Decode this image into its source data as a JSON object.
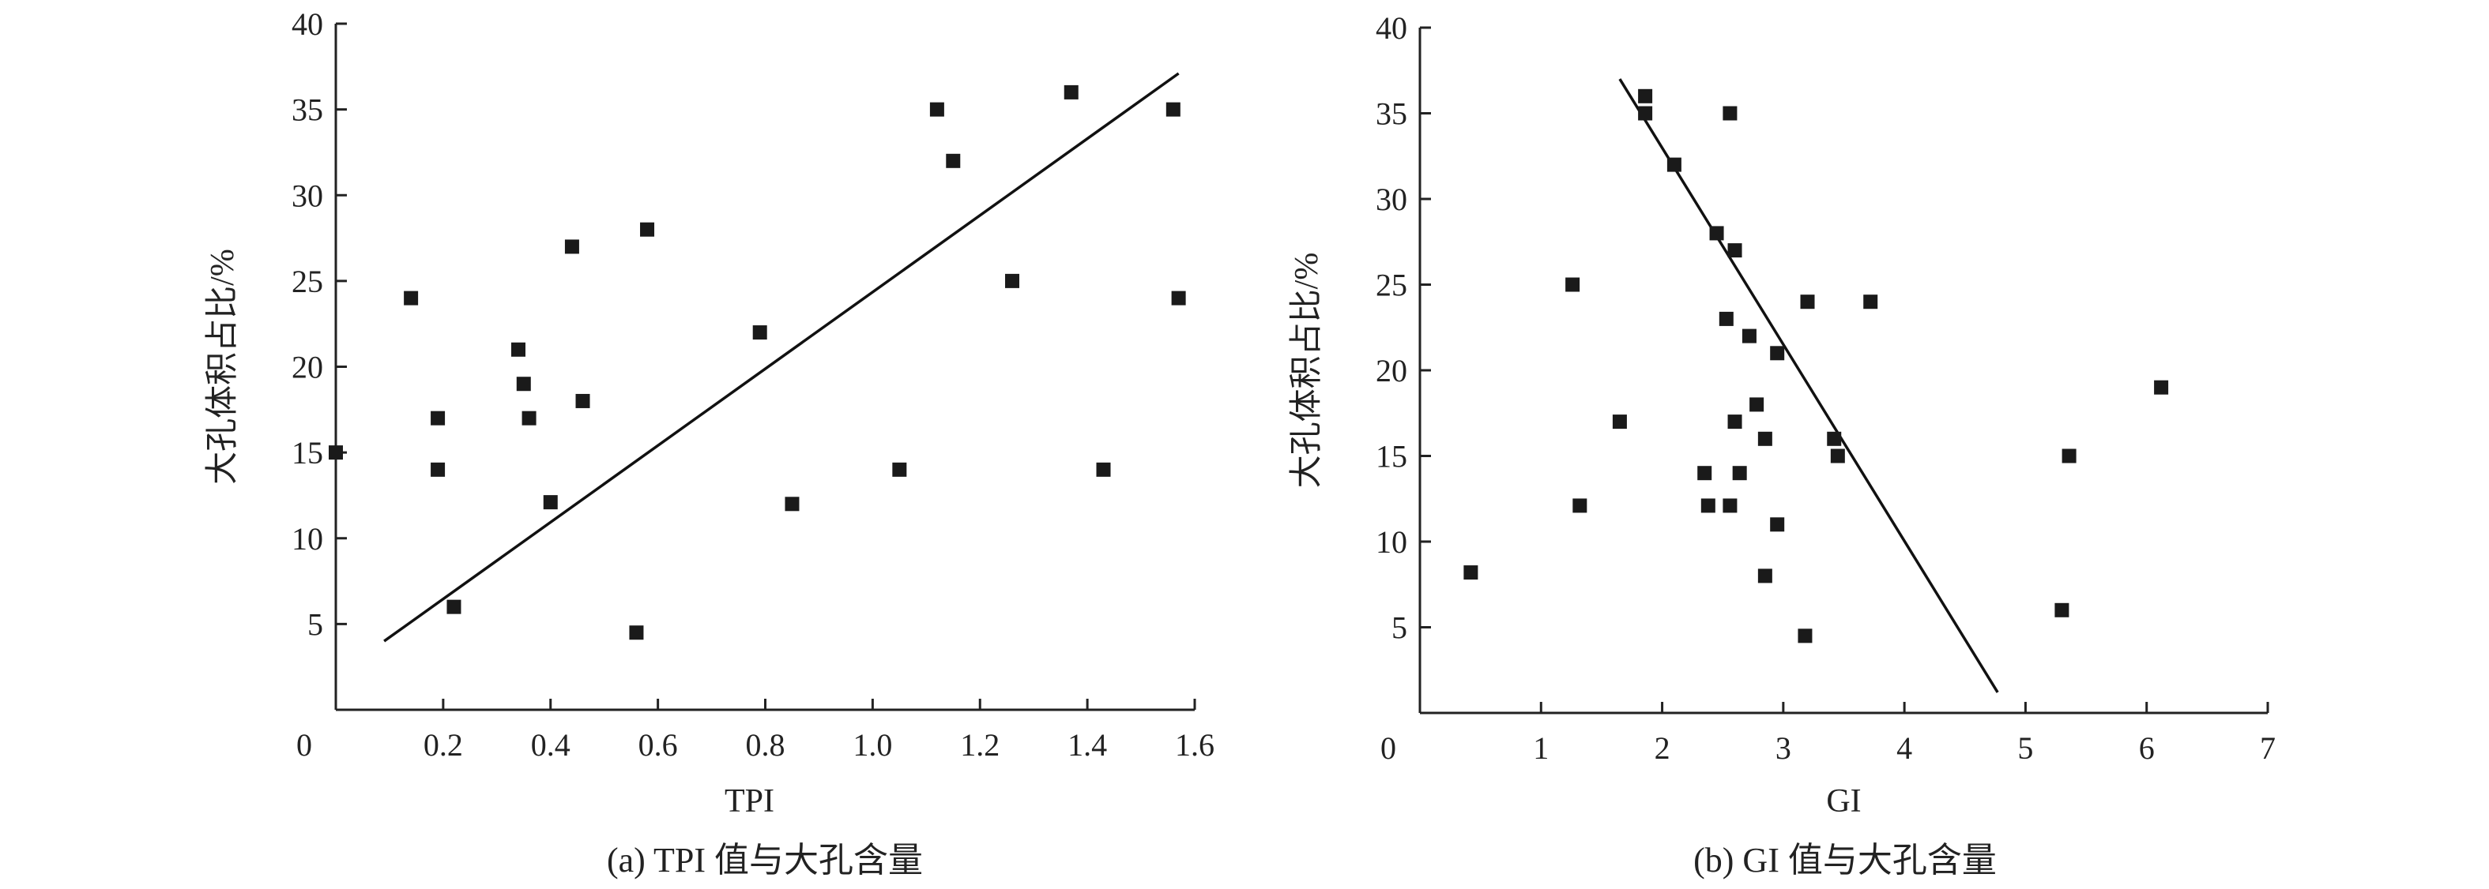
{
  "chart_data": [
    {
      "type": "scatter",
      "panel": "a",
      "caption": "(a) TPI 值与大孔含量",
      "xlabel": "TPI",
      "ylabel": "大孔体积占比/%",
      "xlim": [
        0,
        1.6
      ],
      "ylim": [
        0,
        40
      ],
      "origin_label": "0",
      "xticks": [
        0.2,
        0.4,
        0.6,
        0.8,
        1.0,
        1.2,
        1.4,
        1.6
      ],
      "xtick_labels": [
        "0.2",
        "0.4",
        "0.6",
        "0.8",
        "1.0",
        "1.2",
        "1.4",
        "1.6"
      ],
      "yticks": [
        5,
        10,
        15,
        20,
        25,
        30,
        35,
        40
      ],
      "ytick_labels": [
        "5",
        "10",
        "15",
        "20",
        "25",
        "30",
        "35",
        "40"
      ],
      "points": [
        {
          "x": 0.0,
          "y": 15
        },
        {
          "x": 0.14,
          "y": 24
        },
        {
          "x": 0.19,
          "y": 17
        },
        {
          "x": 0.19,
          "y": 14
        },
        {
          "x": 0.22,
          "y": 6
        },
        {
          "x": 0.34,
          "y": 21
        },
        {
          "x": 0.35,
          "y": 19
        },
        {
          "x": 0.36,
          "y": 17
        },
        {
          "x": 0.4,
          "y": 12.1
        },
        {
          "x": 0.44,
          "y": 27
        },
        {
          "x": 0.46,
          "y": 18
        },
        {
          "x": 0.56,
          "y": 4.5
        },
        {
          "x": 0.58,
          "y": 28
        },
        {
          "x": 0.79,
          "y": 22
        },
        {
          "x": 0.85,
          "y": 12
        },
        {
          "x": 1.05,
          "y": 14
        },
        {
          "x": 1.12,
          "y": 35
        },
        {
          "x": 1.15,
          "y": 32
        },
        {
          "x": 1.26,
          "y": 25
        },
        {
          "x": 1.37,
          "y": 36
        },
        {
          "x": 1.43,
          "y": 14
        },
        {
          "x": 1.56,
          "y": 35
        },
        {
          "x": 1.57,
          "y": 24
        }
      ],
      "fit_line": [
        {
          "x": 0.09,
          "y": 4.0
        },
        {
          "x": 1.57,
          "y": 37.1
        }
      ]
    },
    {
      "type": "scatter",
      "panel": "b",
      "caption": "(b) GI 值与大孔含量",
      "xlabel": "GI",
      "ylabel": "大孔体积占比/%",
      "xlim": [
        0,
        7
      ],
      "ylim": [
        0,
        40
      ],
      "origin_label": "0",
      "xticks": [
        1,
        2,
        3,
        4,
        5,
        6,
        7
      ],
      "xtick_labels": [
        "1",
        "2",
        "3",
        "4",
        "5",
        "6",
        "7"
      ],
      "yticks": [
        5,
        10,
        15,
        20,
        25,
        30,
        35,
        40
      ],
      "ytick_labels": [
        "5",
        "10",
        "15",
        "20",
        "25",
        "30",
        "35",
        "40"
      ],
      "points": [
        {
          "x": 0.42,
          "y": 8.2
        },
        {
          "x": 1.26,
          "y": 25
        },
        {
          "x": 1.32,
          "y": 12.1
        },
        {
          "x": 1.65,
          "y": 17
        },
        {
          "x": 1.86,
          "y": 36
        },
        {
          "x": 1.86,
          "y": 35
        },
        {
          "x": 2.1,
          "y": 32
        },
        {
          "x": 2.35,
          "y": 14
        },
        {
          "x": 2.38,
          "y": 12.1
        },
        {
          "x": 2.45,
          "y": 28
        },
        {
          "x": 2.53,
          "y": 23
        },
        {
          "x": 2.56,
          "y": 35
        },
        {
          "x": 2.56,
          "y": 12.1
        },
        {
          "x": 2.6,
          "y": 27
        },
        {
          "x": 2.6,
          "y": 17
        },
        {
          "x": 2.64,
          "y": 14
        },
        {
          "x": 2.72,
          "y": 22
        },
        {
          "x": 2.78,
          "y": 18
        },
        {
          "x": 2.85,
          "y": 16
        },
        {
          "x": 2.85,
          "y": 8
        },
        {
          "x": 2.95,
          "y": 21
        },
        {
          "x": 2.95,
          "y": 11
        },
        {
          "x": 3.18,
          "y": 4.5
        },
        {
          "x": 3.2,
          "y": 24
        },
        {
          "x": 3.42,
          "y": 16
        },
        {
          "x": 3.45,
          "y": 15
        },
        {
          "x": 3.72,
          "y": 24
        },
        {
          "x": 5.3,
          "y": 6
        },
        {
          "x": 5.36,
          "y": 15
        },
        {
          "x": 6.12,
          "y": 19
        }
      ],
      "fit_line": [
        {
          "x": 1.65,
          "y": 37
        },
        {
          "x": 4.77,
          "y": 1.2
        }
      ]
    }
  ]
}
